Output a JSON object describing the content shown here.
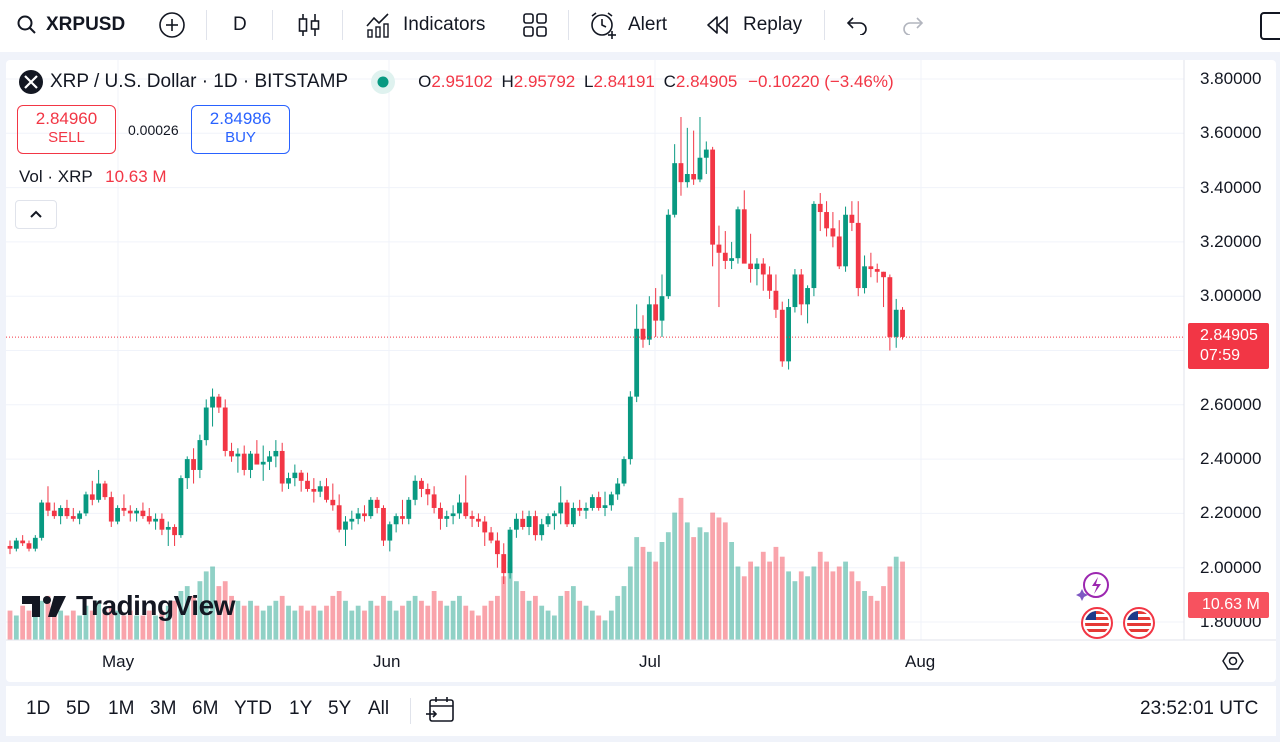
{
  "toolbar": {
    "symbol": "XRPUSD",
    "interval": "D",
    "indicators_label": "Indicators",
    "alert_label": "Alert",
    "replay_label": "Replay"
  },
  "legend": {
    "title": "XRP / U.S. Dollar · 1D · BITSTAMP",
    "open_label": "O",
    "open": "2.95102",
    "high_label": "H",
    "high": "2.95792",
    "low_label": "L",
    "low": "2.84191",
    "close_label": "C",
    "close": "2.84905",
    "change": "−0.10220 (−3.46%)"
  },
  "trade": {
    "sell_price": "2.84960",
    "sell_label": "SELL",
    "spread": "0.00026",
    "buy_price": "2.84986",
    "buy_label": "BUY"
  },
  "volume_legend": {
    "label": "Vol · XRP",
    "value": "10.63 M"
  },
  "price_tag": {
    "price": "2.84905",
    "countdown": "07:59"
  },
  "volume_tag": "10.63 M",
  "watermark": "TradingView",
  "ranges": [
    "1D",
    "5D",
    "1M",
    "3M",
    "6M",
    "YTD",
    "1Y",
    "5Y",
    "All"
  ],
  "clock": "23:52:01 UTC",
  "colors": {
    "up": "#089981",
    "down": "#f23645",
    "accent": "#2962ff"
  },
  "chart_data": {
    "type": "candlestick",
    "title": "XRP / U.S. Dollar · 1D · BITSTAMP",
    "ylim": [
      1.72,
      3.88
    ],
    "y_ticks": [
      "3.80000",
      "3.60000",
      "3.40000",
      "3.20000",
      "3.00000",
      "2.80000",
      "2.60000",
      "2.40000",
      "2.20000",
      "2.00000",
      "1.80000"
    ],
    "x_ticks": [
      "May",
      "Jun",
      "Jul",
      "Aug"
    ],
    "last_price": 2.84905,
    "volume_max": 30,
    "candles": [
      [
        2.08,
        2.1,
        2.05,
        2.07,
        6
      ],
      [
        2.07,
        2.11,
        2.06,
        2.1,
        5
      ],
      [
        2.1,
        2.12,
        2.08,
        2.09,
        7
      ],
      [
        2.09,
        2.1,
        2.06,
        2.07,
        6
      ],
      [
        2.07,
        2.12,
        2.06,
        2.11,
        5
      ],
      [
        2.11,
        2.25,
        2.1,
        2.24,
        8
      ],
      [
        2.24,
        2.3,
        2.19,
        2.21,
        9
      ],
      [
        2.21,
        2.24,
        2.18,
        2.19,
        7
      ],
      [
        2.19,
        2.23,
        2.16,
        2.22,
        6
      ],
      [
        2.22,
        2.25,
        2.18,
        2.19,
        5
      ],
      [
        2.19,
        2.22,
        2.17,
        2.18,
        6
      ],
      [
        2.18,
        2.21,
        2.16,
        2.2,
        5
      ],
      [
        2.2,
        2.28,
        2.19,
        2.27,
        7
      ],
      [
        2.27,
        2.32,
        2.23,
        2.25,
        6
      ],
      [
        2.25,
        2.36,
        2.24,
        2.31,
        8
      ],
      [
        2.31,
        2.32,
        2.25,
        2.26,
        6
      ],
      [
        2.26,
        2.28,
        2.15,
        2.17,
        7
      ],
      [
        2.17,
        2.23,
        2.16,
        2.22,
        6
      ],
      [
        2.22,
        2.27,
        2.19,
        2.21,
        5
      ],
      [
        2.21,
        2.23,
        2.17,
        2.2,
        6
      ],
      [
        2.2,
        2.22,
        2.17,
        2.21,
        5
      ],
      [
        2.21,
        2.24,
        2.18,
        2.19,
        5
      ],
      [
        2.19,
        2.22,
        2.16,
        2.17,
        6
      ],
      [
        2.17,
        2.2,
        2.14,
        2.18,
        5
      ],
      [
        2.18,
        2.2,
        2.12,
        2.14,
        6
      ],
      [
        2.14,
        2.17,
        2.08,
        2.15,
        7
      ],
      [
        2.15,
        2.16,
        2.08,
        2.12,
        8
      ],
      [
        2.12,
        2.34,
        2.11,
        2.33,
        10
      ],
      [
        2.33,
        2.41,
        2.29,
        2.4,
        11
      ],
      [
        2.4,
        2.44,
        2.31,
        2.36,
        9
      ],
      [
        2.36,
        2.49,
        2.33,
        2.47,
        12
      ],
      [
        2.47,
        2.62,
        2.45,
        2.59,
        14
      ],
      [
        2.59,
        2.66,
        2.52,
        2.63,
        15
      ],
      [
        2.63,
        2.64,
        2.57,
        2.59,
        11
      ],
      [
        2.59,
        2.62,
        2.41,
        2.43,
        12
      ],
      [
        2.43,
        2.46,
        2.39,
        2.41,
        9
      ],
      [
        2.41,
        2.44,
        2.35,
        2.42,
        8
      ],
      [
        2.42,
        2.45,
        2.34,
        2.36,
        7
      ],
      [
        2.36,
        2.43,
        2.33,
        2.42,
        8
      ],
      [
        2.42,
        2.47,
        2.38,
        2.38,
        7
      ],
      [
        2.38,
        2.45,
        2.32,
        2.39,
        6
      ],
      [
        2.39,
        2.43,
        2.36,
        2.41,
        7
      ],
      [
        2.41,
        2.47,
        2.37,
        2.43,
        8
      ],
      [
        2.43,
        2.46,
        2.28,
        2.31,
        9
      ],
      [
        2.31,
        2.35,
        2.29,
        2.33,
        7
      ],
      [
        2.33,
        2.38,
        2.3,
        2.35,
        6
      ],
      [
        2.35,
        2.36,
        2.28,
        2.32,
        7
      ],
      [
        2.32,
        2.35,
        2.28,
        2.29,
        6
      ],
      [
        2.29,
        2.33,
        2.24,
        2.28,
        7
      ],
      [
        2.28,
        2.32,
        2.26,
        2.3,
        6
      ],
      [
        2.3,
        2.33,
        2.24,
        2.25,
        7
      ],
      [
        2.25,
        2.31,
        2.21,
        2.23,
        9
      ],
      [
        2.23,
        2.27,
        2.13,
        2.14,
        10
      ],
      [
        2.14,
        2.19,
        2.08,
        2.17,
        8
      ],
      [
        2.17,
        2.21,
        2.14,
        2.18,
        6
      ],
      [
        2.18,
        2.22,
        2.16,
        2.2,
        7
      ],
      [
        2.2,
        2.23,
        2.17,
        2.19,
        6
      ],
      [
        2.19,
        2.26,
        2.18,
        2.25,
        8
      ],
      [
        2.25,
        2.26,
        2.2,
        2.22,
        7
      ],
      [
        2.22,
        2.23,
        2.08,
        2.1,
        9
      ],
      [
        2.1,
        2.17,
        2.06,
        2.16,
        8
      ],
      [
        2.16,
        2.2,
        2.13,
        2.19,
        6
      ],
      [
        2.19,
        2.25,
        2.16,
        2.18,
        7
      ],
      [
        2.18,
        2.26,
        2.16,
        2.25,
        8
      ],
      [
        2.25,
        2.34,
        2.23,
        2.32,
        9
      ],
      [
        2.32,
        2.33,
        2.26,
        2.29,
        8
      ],
      [
        2.29,
        2.31,
        2.23,
        2.27,
        7
      ],
      [
        2.27,
        2.3,
        2.2,
        2.22,
        10
      ],
      [
        2.22,
        2.24,
        2.14,
        2.18,
        8
      ],
      [
        2.18,
        2.21,
        2.15,
        2.19,
        7
      ],
      [
        2.19,
        2.23,
        2.16,
        2.2,
        8
      ],
      [
        2.2,
        2.27,
        2.18,
        2.24,
        9
      ],
      [
        2.24,
        2.34,
        2.18,
        2.19,
        7
      ],
      [
        2.19,
        2.21,
        2.15,
        2.18,
        6
      ],
      [
        2.18,
        2.2,
        2.15,
        2.17,
        5
      ],
      [
        2.17,
        2.19,
        2.08,
        2.13,
        7
      ],
      [
        2.13,
        2.15,
        2.09,
        2.1,
        8
      ],
      [
        2.1,
        2.13,
        2.0,
        2.05,
        9
      ],
      [
        2.05,
        2.09,
        1.94,
        1.98,
        13
      ],
      [
        1.98,
        2.15,
        1.96,
        2.14,
        16
      ],
      [
        2.14,
        2.2,
        2.11,
        2.18,
        12
      ],
      [
        2.18,
        2.21,
        2.14,
        2.15,
        10
      ],
      [
        2.15,
        2.21,
        2.12,
        2.19,
        8
      ],
      [
        2.19,
        2.21,
        2.1,
        2.12,
        9
      ],
      [
        2.12,
        2.18,
        2.1,
        2.16,
        7
      ],
      [
        2.16,
        2.2,
        2.15,
        2.19,
        6
      ],
      [
        2.19,
        2.21,
        2.14,
        2.2,
        5
      ],
      [
        2.2,
        2.3,
        2.16,
        2.24,
        9
      ],
      [
        2.24,
        2.25,
        2.15,
        2.16,
        10
      ],
      [
        2.16,
        2.24,
        2.15,
        2.22,
        11
      ],
      [
        2.22,
        2.25,
        2.19,
        2.21,
        8
      ],
      [
        2.21,
        2.24,
        2.18,
        2.22,
        7
      ],
      [
        2.22,
        2.27,
        2.21,
        2.26,
        6
      ],
      [
        2.26,
        2.28,
        2.21,
        2.22,
        5
      ],
      [
        2.22,
        2.28,
        2.19,
        2.23,
        4
      ],
      [
        2.23,
        2.28,
        2.21,
        2.27,
        6
      ],
      [
        2.27,
        2.33,
        2.25,
        2.31,
        9
      ],
      [
        2.31,
        2.41,
        2.3,
        2.4,
        11
      ],
      [
        2.4,
        2.65,
        2.38,
        2.63,
        15
      ],
      [
        2.63,
        2.97,
        2.61,
        2.88,
        21
      ],
      [
        2.88,
        2.93,
        2.81,
        2.84,
        19
      ],
      [
        2.84,
        3.0,
        2.82,
        2.97,
        18
      ],
      [
        2.97,
        3.03,
        2.85,
        2.91,
        16
      ],
      [
        2.91,
        3.08,
        2.85,
        3.0,
        20
      ],
      [
        3.0,
        3.32,
        2.99,
        3.3,
        22
      ],
      [
        3.3,
        3.56,
        3.29,
        3.49,
        26
      ],
      [
        3.49,
        3.66,
        3.37,
        3.42,
        29
      ],
      [
        3.42,
        3.62,
        3.4,
        3.45,
        24
      ],
      [
        3.45,
        3.61,
        3.41,
        3.43,
        21
      ],
      [
        3.43,
        3.66,
        3.42,
        3.51,
        23
      ],
      [
        3.51,
        3.57,
        3.45,
        3.54,
        22
      ],
      [
        3.54,
        3.55,
        3.11,
        3.19,
        26
      ],
      [
        3.19,
        3.26,
        2.96,
        3.16,
        25
      ],
      [
        3.16,
        3.24,
        3.1,
        3.13,
        24
      ],
      [
        3.13,
        3.2,
        3.1,
        3.14,
        20
      ],
      [
        3.14,
        3.33,
        3.12,
        3.32,
        15
      ],
      [
        3.32,
        3.39,
        3.13,
        3.12,
        13
      ],
      [
        3.12,
        3.23,
        3.05,
        3.1,
        16
      ],
      [
        3.1,
        3.14,
        3.04,
        3.12,
        15
      ],
      [
        3.12,
        3.14,
        3.02,
        3.08,
        18
      ],
      [
        3.08,
        3.11,
        2.99,
        3.02,
        16
      ],
      [
        3.02,
        3.08,
        2.92,
        2.95,
        19
      ],
      [
        2.95,
        2.98,
        2.74,
        2.76,
        17
      ],
      [
        2.76,
        2.99,
        2.73,
        2.96,
        14
      ],
      [
        2.96,
        3.1,
        2.94,
        3.08,
        12
      ],
      [
        3.08,
        3.1,
        2.93,
        2.97,
        14
      ],
      [
        2.97,
        3.04,
        2.9,
        3.03,
        13
      ],
      [
        3.03,
        3.35,
        3.0,
        3.34,
        15
      ],
      [
        3.34,
        3.38,
        3.24,
        3.31,
        18
      ],
      [
        3.31,
        3.35,
        3.22,
        3.25,
        16
      ],
      [
        3.25,
        3.31,
        3.18,
        3.22,
        14
      ],
      [
        3.22,
        3.28,
        3.1,
        3.11,
        15
      ],
      [
        3.11,
        3.33,
        3.09,
        3.3,
        16
      ],
      [
        3.3,
        3.35,
        3.24,
        3.27,
        14
      ],
      [
        3.27,
        3.35,
        3.0,
        3.03,
        12
      ],
      [
        3.03,
        3.15,
        3.01,
        3.11,
        10
      ],
      [
        3.11,
        3.16,
        3.07,
        3.1,
        9
      ],
      [
        3.1,
        3.12,
        3.05,
        3.09,
        8
      ],
      [
        3.09,
        3.09,
        2.96,
        3.07,
        11
      ],
      [
        3.07,
        3.08,
        2.8,
        2.85,
        15
      ],
      [
        2.85,
        2.99,
        2.81,
        2.95,
        17
      ],
      [
        2.95,
        2.96,
        2.84,
        2.85,
        16
      ]
    ]
  }
}
